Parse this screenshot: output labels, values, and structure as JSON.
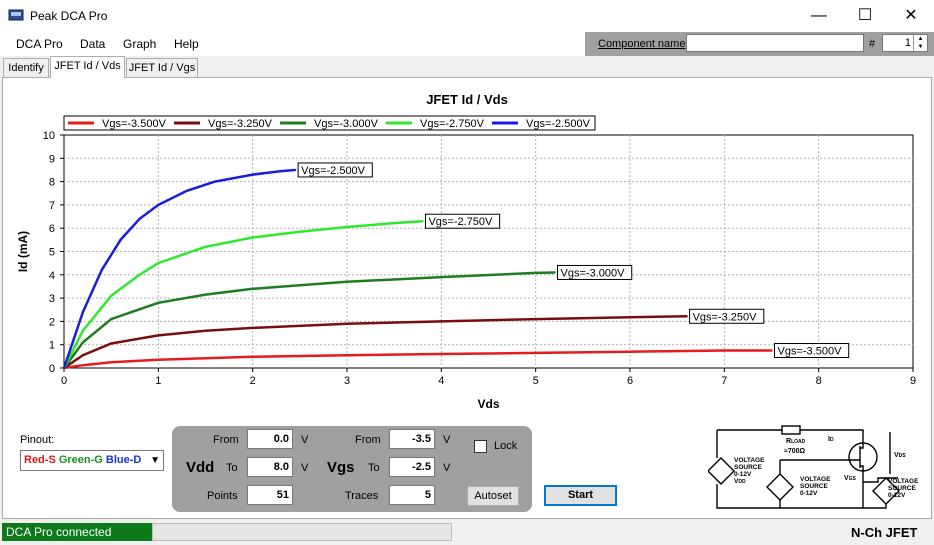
{
  "app": {
    "title": "Peak DCA Pro"
  },
  "window": {
    "minimize": "—",
    "maximize": "☐",
    "close": "✕"
  },
  "menu": [
    "DCA Pro",
    "Data",
    "Graph",
    "Help"
  ],
  "component": {
    "label": "Component name",
    "value": "",
    "hash": "#",
    "number": "1"
  },
  "tabs": [
    "Identify",
    "JFET Id / Vds",
    "JFET Id / Vgs"
  ],
  "active_tab": 1,
  "chart_data": {
    "type": "line",
    "title": "JFET Id / Vds",
    "xlabel": "Vds",
    "ylabel": "Id (mA)",
    "xlim": [
      0,
      9
    ],
    "ylim": [
      0,
      10
    ],
    "xticks": [
      0,
      1,
      2,
      3,
      4,
      5,
      6,
      7,
      8,
      9
    ],
    "yticks": [
      0,
      1,
      2,
      3,
      4,
      5,
      6,
      7,
      8,
      9,
      10
    ],
    "grid": true,
    "legend_position": "top",
    "series": [
      {
        "name": "Vgs=-3.500V",
        "color": "#e51c1c",
        "x": [
          0,
          0.2,
          0.5,
          1,
          2,
          3,
          4,
          5,
          6,
          7,
          7.5
        ],
        "y": [
          0,
          0.12,
          0.25,
          0.35,
          0.48,
          0.55,
          0.6,
          0.65,
          0.7,
          0.75,
          0.75
        ]
      },
      {
        "name": "Vgs=-3.250V",
        "color": "#7a0e0e",
        "x": [
          0,
          0.2,
          0.5,
          1,
          1.5,
          2,
          3,
          4,
          5,
          6,
          6.6
        ],
        "y": [
          0,
          0.55,
          1.05,
          1.4,
          1.6,
          1.72,
          1.9,
          2.0,
          2.1,
          2.18,
          2.22
        ]
      },
      {
        "name": "Vgs=-3.000V",
        "color": "#1e7d1e",
        "x": [
          0,
          0.2,
          0.5,
          1,
          1.5,
          2,
          2.5,
          3,
          4,
          5,
          5.2
        ],
        "y": [
          0,
          1.1,
          2.1,
          2.8,
          3.15,
          3.4,
          3.55,
          3.7,
          3.9,
          4.08,
          4.1
        ]
      },
      {
        "name": "Vgs=-2.750V",
        "color": "#2ee82e",
        "x": [
          0,
          0.2,
          0.5,
          0.8,
          1,
          1.5,
          2,
          2.5,
          3,
          3.5,
          3.8
        ],
        "y": [
          0,
          1.6,
          3.1,
          4.0,
          4.5,
          5.2,
          5.6,
          5.85,
          6.05,
          6.22,
          6.3
        ]
      },
      {
        "name": "Vgs=-2.500V",
        "color": "#1c1cdc",
        "x": [
          0,
          0.2,
          0.4,
          0.6,
          0.8,
          1,
          1.3,
          1.6,
          2,
          2.3,
          2.45
        ],
        "y": [
          0,
          2.4,
          4.2,
          5.5,
          6.4,
          7.0,
          7.6,
          8.0,
          8.3,
          8.45,
          8.5
        ]
      }
    ]
  },
  "pinout": {
    "label": "Pinout:",
    "segments": [
      {
        "text": "Red-S",
        "color": "#d01818"
      },
      {
        "text": " Green-G",
        "color": "#1a8f1a"
      },
      {
        "text": " Blue-D",
        "color": "#1a33d0"
      }
    ]
  },
  "params": {
    "from_label": "From",
    "to_label": "To",
    "points_label": "Points",
    "traces_label": "Traces",
    "vdd_label": "Vdd",
    "vgs_label": "Vgs",
    "unit": "V",
    "vdd_from": "0.0",
    "vdd_to": "8.0",
    "points": "51",
    "vgs_from": "-3.5",
    "vgs_to": "-2.5",
    "traces": "5",
    "lock_label": "Lock",
    "autoset": "Autoset",
    "start": "Start"
  },
  "circuit": {
    "rload": "R",
    "rload_sub": "LOAD",
    "rload_val": "≈700Ω",
    "id_label": "I",
    "id_sub": "D",
    "vds_label": "V",
    "vds_sub": "DS",
    "vgs_label": "V",
    "vgs_sub": "GS",
    "vdd_source": [
      "VOLTAGE",
      "SOURCE",
      "0-12V",
      "V"
    ],
    "vdd_source_sub": "DD",
    "mid_source": [
      "VOLTAGE",
      "SOURCE",
      "0-12V"
    ],
    "right_source": [
      "VOLTAGE",
      "SOURCE",
      "0-12V"
    ]
  },
  "status": {
    "connection": "DCA Pro connected",
    "device": "N-Ch JFET"
  }
}
